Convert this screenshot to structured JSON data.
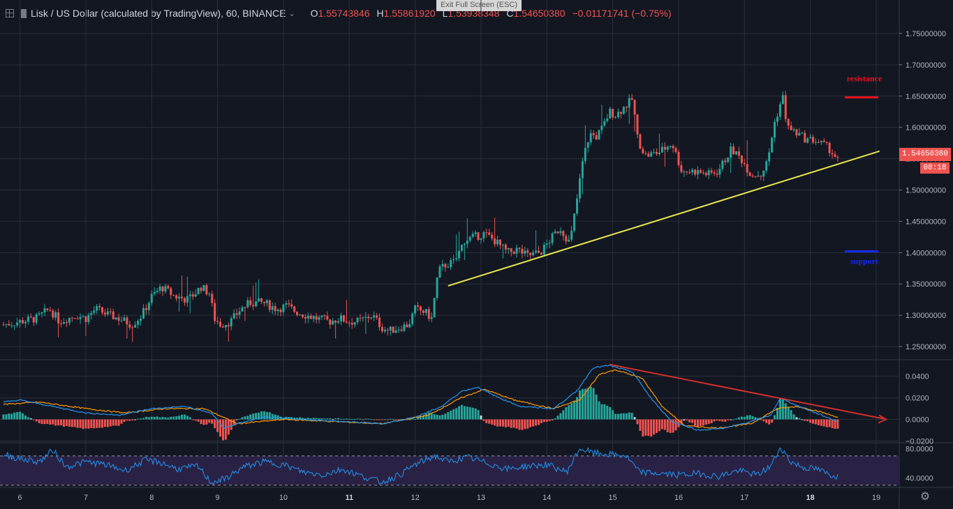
{
  "header": {
    "symbol": "Lisk / US Dollar (calculated by TradingView), 60, BINANCE",
    "o_label": "O",
    "o_value": "1.55743846",
    "h_label": "H",
    "h_value": "1.55861920",
    "l_label": "L",
    "l_value": "1.53938348",
    "c_label": "C",
    "c_value": "1.54650380",
    "change": "−0.01171741 (−0.75%)"
  },
  "exit_fullscreen": "Exit Full Screen (ESC)",
  "price_tag": "1.54650380",
  "countdown": "08:18",
  "colors": {
    "up": "#26a69a",
    "down": "#ef5350",
    "bg": "#131722",
    "grid": "#2a2e39",
    "trendline": "#e8e84a",
    "resistance": "#e8121e",
    "support": "#1428f0",
    "macd": "#2196f3",
    "signal": "#ff9800",
    "rsi": "#2196f3",
    "rsi_band": "#2a2245",
    "divergence": "#d32f2f"
  },
  "chart_data": [
    {
      "type": "candlestick",
      "pane": "price",
      "ylim": [
        1.23,
        1.77
      ],
      "y_ticks": [
        "1.25000000",
        "1.30000000",
        "1.35000000",
        "1.40000000",
        "1.45000000",
        "1.50000000",
        "1.55000000",
        "1.60000000",
        "1.65000000",
        "1.70000000",
        "1.75000000"
      ],
      "x_ticks": [
        "6",
        "7",
        "8",
        "9",
        "10",
        "11",
        "12",
        "13",
        "14",
        "15",
        "16",
        "17",
        "18",
        "19"
      ],
      "xlim": [
        5.75,
        19.35
      ],
      "closes": [
        [
          5.75,
          1.285
        ],
        [
          6.0,
          1.29
        ],
        [
          6.25,
          1.295
        ],
        [
          6.45,
          1.31
        ],
        [
          6.6,
          1.29
        ],
        [
          6.85,
          1.3
        ],
        [
          7.0,
          1.295
        ],
        [
          7.15,
          1.31
        ],
        [
          7.35,
          1.3
        ],
        [
          7.5,
          1.295
        ],
        [
          7.7,
          1.285
        ],
        [
          7.85,
          1.3
        ],
        [
          8.0,
          1.33
        ],
        [
          8.15,
          1.345
        ],
        [
          8.35,
          1.33
        ],
        [
          8.55,
          1.325
        ],
        [
          8.75,
          1.345
        ],
        [
          8.88,
          1.335
        ],
        [
          8.95,
          1.295
        ],
        [
          9.05,
          1.285
        ],
        [
          9.2,
          1.29
        ],
        [
          9.35,
          1.31
        ],
        [
          9.5,
          1.32
        ],
        [
          9.7,
          1.32
        ],
        [
          9.9,
          1.31
        ],
        [
          10.05,
          1.315
        ],
        [
          10.2,
          1.305
        ],
        [
          10.35,
          1.3
        ],
        [
          10.5,
          1.295
        ],
        [
          10.7,
          1.29
        ],
        [
          10.85,
          1.295
        ],
        [
          11.0,
          1.29
        ],
        [
          11.15,
          1.29
        ],
        [
          11.35,
          1.3
        ],
        [
          11.5,
          1.28
        ],
        [
          11.6,
          1.275
        ],
        [
          11.75,
          1.28
        ],
        [
          11.9,
          1.285
        ],
        [
          12.0,
          1.31
        ],
        [
          12.15,
          1.305
        ],
        [
          12.25,
          1.295
        ],
        [
          12.35,
          1.37
        ],
        [
          12.45,
          1.38
        ],
        [
          12.6,
          1.385
        ],
        [
          12.75,
          1.42
        ],
        [
          12.9,
          1.425
        ],
        [
          13.05,
          1.43
        ],
        [
          13.2,
          1.42
        ],
        [
          13.4,
          1.4
        ],
        [
          13.55,
          1.405
        ],
        [
          13.7,
          1.395
        ],
        [
          13.9,
          1.4
        ],
        [
          14.05,
          1.42
        ],
        [
          14.2,
          1.44
        ],
        [
          14.35,
          1.415
        ],
        [
          14.45,
          1.48
        ],
        [
          14.55,
          1.55
        ],
        [
          14.65,
          1.59
        ],
        [
          14.75,
          1.585
        ],
        [
          14.85,
          1.6
        ],
        [
          14.95,
          1.625
        ],
        [
          15.05,
          1.62
        ],
        [
          15.15,
          1.63
        ],
        [
          15.3,
          1.645
        ],
        [
          15.38,
          1.58
        ],
        [
          15.5,
          1.555
        ],
        [
          15.7,
          1.56
        ],
        [
          15.9,
          1.575
        ],
        [
          16.05,
          1.53
        ],
        [
          16.25,
          1.53
        ],
        [
          16.45,
          1.525
        ],
        [
          16.6,
          1.53
        ],
        [
          16.8,
          1.565
        ],
        [
          16.95,
          1.55
        ],
        [
          17.1,
          1.525
        ],
        [
          17.25,
          1.525
        ],
        [
          17.35,
          1.545
        ],
        [
          17.45,
          1.605
        ],
        [
          17.58,
          1.65
        ],
        [
          17.65,
          1.6
        ],
        [
          17.8,
          1.59
        ],
        [
          17.95,
          1.58
        ],
        [
          18.05,
          1.58
        ],
        [
          18.15,
          1.575
        ],
        [
          18.3,
          1.565
        ],
        [
          18.42,
          1.5465
        ]
      ],
      "annotations": [
        {
          "type": "trendline",
          "from": [
            12.5,
            1.347
          ],
          "to": [
            19.05,
            1.562
          ]
        },
        {
          "type": "hline",
          "label": "resistance",
          "y": 1.648,
          "x_from": 18.55,
          "x_to": 19.2
        },
        {
          "type": "hline",
          "label": "support",
          "y": 1.402,
          "x_from": 18.55,
          "x_to": 19.2
        }
      ]
    },
    {
      "type": "macd",
      "pane": "macd",
      "ylim": [
        -0.021,
        0.054
      ],
      "y_ticks": [
        "0.0400",
        "0.0200",
        "0.0000",
        "−0.0200"
      ],
      "macd": [
        [
          5.75,
          0.016
        ],
        [
          6.0,
          0.018
        ],
        [
          6.5,
          0.012
        ],
        [
          7.0,
          0.006
        ],
        [
          7.5,
          0.004
        ],
        [
          8.0,
          0.01
        ],
        [
          8.5,
          0.012
        ],
        [
          8.9,
          0.006
        ],
        [
          9.1,
          -0.008
        ],
        [
          9.3,
          -0.004
        ],
        [
          9.7,
          0.002
        ],
        [
          10.3,
          0.0
        ],
        [
          10.9,
          -0.002
        ],
        [
          11.5,
          -0.004
        ],
        [
          12.0,
          0.002
        ],
        [
          12.4,
          0.012
        ],
        [
          12.7,
          0.026
        ],
        [
          12.95,
          0.03
        ],
        [
          13.2,
          0.022
        ],
        [
          13.6,
          0.012
        ],
        [
          14.1,
          0.01
        ],
        [
          14.45,
          0.026
        ],
        [
          14.7,
          0.048
        ],
        [
          14.95,
          0.05
        ],
        [
          15.3,
          0.044
        ],
        [
          15.6,
          0.018
        ],
        [
          15.9,
          -0.002
        ],
        [
          16.3,
          -0.01
        ],
        [
          16.7,
          -0.008
        ],
        [
          17.1,
          -0.002
        ],
        [
          17.4,
          0.004
        ],
        [
          17.55,
          0.02
        ],
        [
          17.75,
          0.014
        ],
        [
          18.0,
          0.008
        ],
        [
          18.42,
          -0.002
        ]
      ],
      "signal": [
        [
          5.75,
          0.014
        ],
        [
          6.3,
          0.016
        ],
        [
          7.0,
          0.01
        ],
        [
          7.6,
          0.006
        ],
        [
          8.2,
          0.01
        ],
        [
          8.8,
          0.01
        ],
        [
          9.3,
          -0.004
        ],
        [
          10.0,
          0.0
        ],
        [
          10.8,
          -0.002
        ],
        [
          11.5,
          -0.004
        ],
        [
          12.2,
          0.004
        ],
        [
          12.7,
          0.02
        ],
        [
          13.05,
          0.028
        ],
        [
          13.5,
          0.018
        ],
        [
          14.1,
          0.01
        ],
        [
          14.5,
          0.018
        ],
        [
          14.8,
          0.042
        ],
        [
          15.05,
          0.046
        ],
        [
          15.45,
          0.038
        ],
        [
          15.75,
          0.012
        ],
        [
          16.1,
          -0.006
        ],
        [
          16.6,
          -0.008
        ],
        [
          17.1,
          -0.004
        ],
        [
          17.5,
          0.01
        ],
        [
          17.8,
          0.012
        ],
        [
          18.1,
          0.008
        ],
        [
          18.42,
          0.002
        ]
      ],
      "divergence_line": {
        "from": [
          14.95,
          0.051
        ],
        "to": [
          19.15,
          0.0
        ]
      }
    },
    {
      "type": "rsi",
      "pane": "rsi",
      "ylim": [
        28,
        86
      ],
      "y_ticks": [
        "80.0000",
        "40.0000"
      ],
      "bands": [
        70,
        30
      ],
      "values": [
        [
          5.75,
          72
        ],
        [
          6.0,
          66
        ],
        [
          6.3,
          62
        ],
        [
          6.5,
          78
        ],
        [
          6.7,
          55
        ],
        [
          7.0,
          62
        ],
        [
          7.3,
          58
        ],
        [
          7.6,
          50
        ],
        [
          7.9,
          64
        ],
        [
          8.1,
          62
        ],
        [
          8.4,
          52
        ],
        [
          8.7,
          56
        ],
        [
          8.9,
          34
        ],
        [
          9.1,
          38
        ],
        [
          9.4,
          55
        ],
        [
          9.7,
          62
        ],
        [
          10.0,
          58
        ],
        [
          10.3,
          48
        ],
        [
          10.6,
          44
        ],
        [
          10.9,
          52
        ],
        [
          11.2,
          42
        ],
        [
          11.5,
          34
        ],
        [
          11.8,
          46
        ],
        [
          12.0,
          58
        ],
        [
          12.3,
          70
        ],
        [
          12.5,
          62
        ],
        [
          12.8,
          68
        ],
        [
          13.1,
          60
        ],
        [
          13.4,
          52
        ],
        [
          13.7,
          56
        ],
        [
          14.0,
          58
        ],
        [
          14.3,
          48
        ],
        [
          14.5,
          80
        ],
        [
          14.7,
          74
        ],
        [
          14.95,
          72
        ],
        [
          15.2,
          70
        ],
        [
          15.4,
          48
        ],
        [
          15.7,
          46
        ],
        [
          16.0,
          44
        ],
        [
          16.3,
          46
        ],
        [
          16.6,
          42
        ],
        [
          16.9,
          50
        ],
        [
          17.2,
          44
        ],
        [
          17.4,
          56
        ],
        [
          17.55,
          82
        ],
        [
          17.7,
          62
        ],
        [
          17.9,
          54
        ],
        [
          18.1,
          52
        ],
        [
          18.3,
          44
        ],
        [
          18.42,
          42
        ]
      ]
    }
  ]
}
